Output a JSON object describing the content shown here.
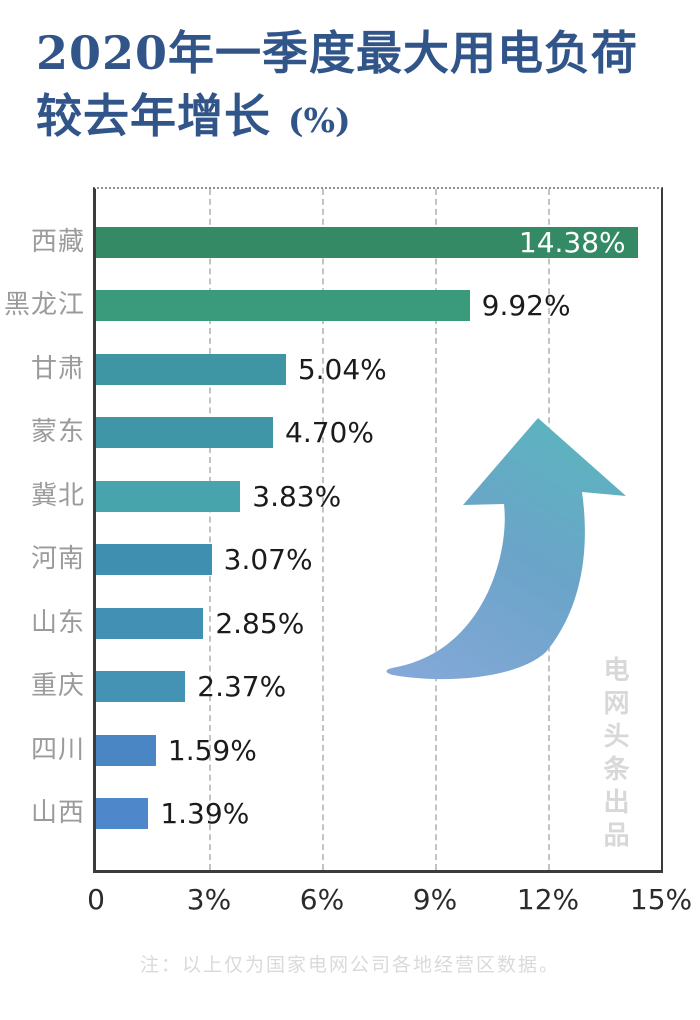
{
  "title": {
    "line1": "2020年一季度最大用电负荷",
    "line2": "较去年增长",
    "suffix": "(%)"
  },
  "watermark": "电网头条出品",
  "footnote": "注：以上仅为国家电网公司各地经营区数据。",
  "colors": {
    "title": "#315589",
    "axis": "#3b3b3b",
    "gridline": "#c3c3c3",
    "category_label": "#9b9b9b",
    "value_label": "#1b1b1b",
    "value_label_inside": "#ffffff",
    "watermark": "#d8d8d8",
    "footnote": "#dadada",
    "arrow_gradient_start": "#84a8d8",
    "arrow_gradient_end": "#5db3bf"
  },
  "chart_data": {
    "type": "bar",
    "orientation": "horizontal",
    "title": "2020年一季度最大用电负荷较去年增长 (%)",
    "categories": [
      "西藏",
      "黑龙江",
      "甘肃",
      "蒙东",
      "冀北",
      "河南",
      "山东",
      "重庆",
      "四川",
      "山西"
    ],
    "values": [
      14.38,
      9.92,
      5.04,
      4.7,
      3.83,
      3.07,
      2.85,
      2.37,
      1.59,
      1.39
    ],
    "value_labels": [
      "14.38%",
      "9.92%",
      "5.04%",
      "4.70%",
      "3.83%",
      "3.07%",
      "2.85%",
      "2.37%",
      "1.59%",
      "1.39%"
    ],
    "bar_colors": [
      "#338a64",
      "#3a9a7c",
      "#3e95a3",
      "#3f96a6",
      "#47a4ad",
      "#3f8fb0",
      "#4291b4",
      "#4493b4",
      "#4a86c3",
      "#4e88ca"
    ],
    "value_label_inside_bar_index": 0,
    "xlim": [
      0,
      15
    ],
    "x_ticks": [
      "0",
      "3%",
      "6%",
      "9%",
      "12%",
      "15%"
    ],
    "x_tick_values": [
      0,
      3,
      6,
      9,
      12,
      15
    ],
    "gridlines_at": [
      3,
      6,
      9,
      12
    ],
    "grid_style": "dashed-vertical",
    "legend": "none"
  }
}
